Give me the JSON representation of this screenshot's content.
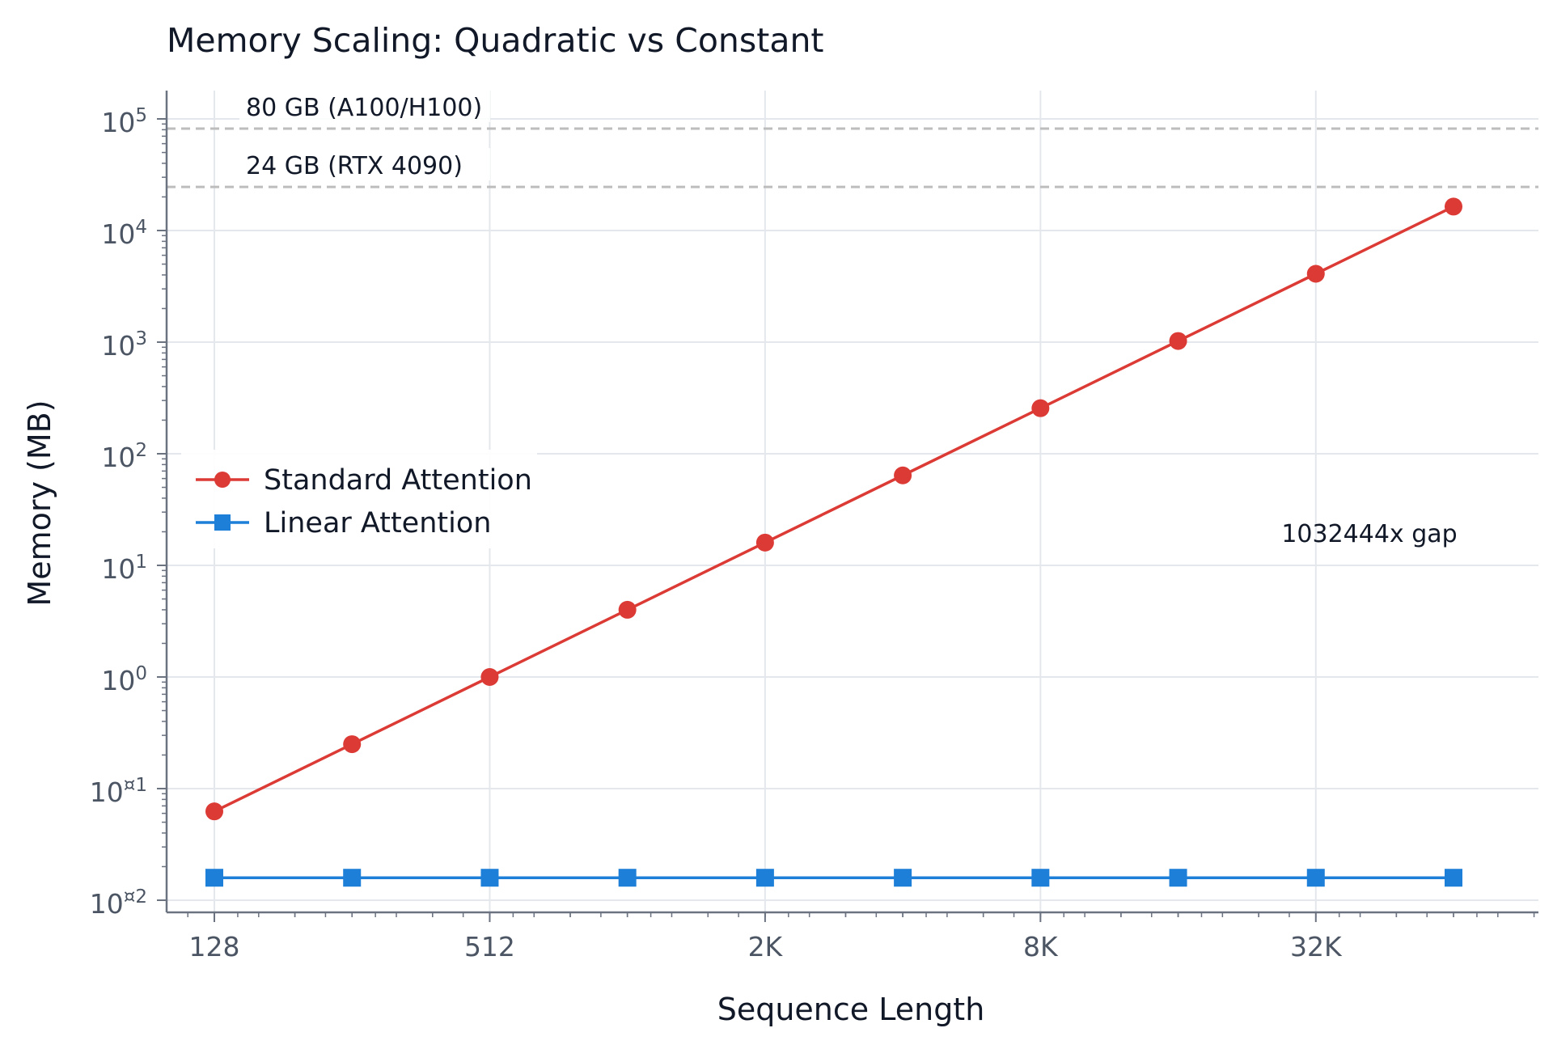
{
  "chart_data": {
    "type": "line",
    "title": "Memory Scaling: Quadratic vs Constant",
    "xlabel": "Sequence Length",
    "ylabel": "Memory (MB)",
    "x_scale": "log2",
    "y_scale": "log10",
    "x": [
      128,
      256,
      512,
      1024,
      2048,
      4096,
      8192,
      16384,
      32768,
      65536
    ],
    "x_ticks": [
      {
        "value": 128,
        "label": "128"
      },
      {
        "value": 512,
        "label": "512"
      },
      {
        "value": 2048,
        "label": "2K"
      },
      {
        "value": 8192,
        "label": "8K"
      },
      {
        "value": 32768,
        "label": "32K"
      }
    ],
    "y_ticks": [
      {
        "exp": 5,
        "label": "10",
        "sup": "5"
      },
      {
        "exp": 4,
        "label": "10",
        "sup": "4"
      },
      {
        "exp": 3,
        "label": "10",
        "sup": "3"
      },
      {
        "exp": 2,
        "label": "10",
        "sup": "2"
      },
      {
        "exp": 1,
        "label": "10",
        "sup": "1"
      },
      {
        "exp": 0,
        "label": "10",
        "sup": "0"
      },
      {
        "exp": -1,
        "label": "10",
        "sup": "¤1"
      },
      {
        "exp": -2,
        "label": "10",
        "sup": "¤2"
      }
    ],
    "series": [
      {
        "name": "Standard Attention",
        "color": "#dc3a35",
        "marker": "circle",
        "values": [
          0.0625,
          0.25,
          1,
          4,
          16,
          64,
          256,
          1024,
          4096,
          16384
        ]
      },
      {
        "name": "Linear Attention",
        "color": "#1e7fd8",
        "marker": "square",
        "values": [
          0.0159,
          0.0159,
          0.0159,
          0.0159,
          0.0159,
          0.0159,
          0.0159,
          0.0159,
          0.0159,
          0.0159
        ]
      }
    ],
    "reference_lines": [
      {
        "value": 81920,
        "label": "80 GB (A100/H100)",
        "color": "#bdbdbd"
      },
      {
        "value": 24576,
        "label": "24 GB (RTX 4090)",
        "color": "#bdbdbd"
      }
    ],
    "annotations": [
      {
        "text": "1032444x gap"
      }
    ],
    "grid": true,
    "legend_position": "center-left"
  }
}
